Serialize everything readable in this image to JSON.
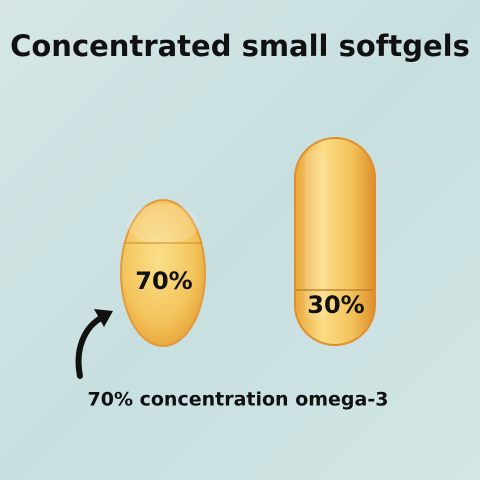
{
  "title": "Concentrated small softgels",
  "softgels": [
    {
      "label": "70%"
    },
    {
      "label": "30%"
    }
  ],
  "caption": "70% concentration omega-3"
}
